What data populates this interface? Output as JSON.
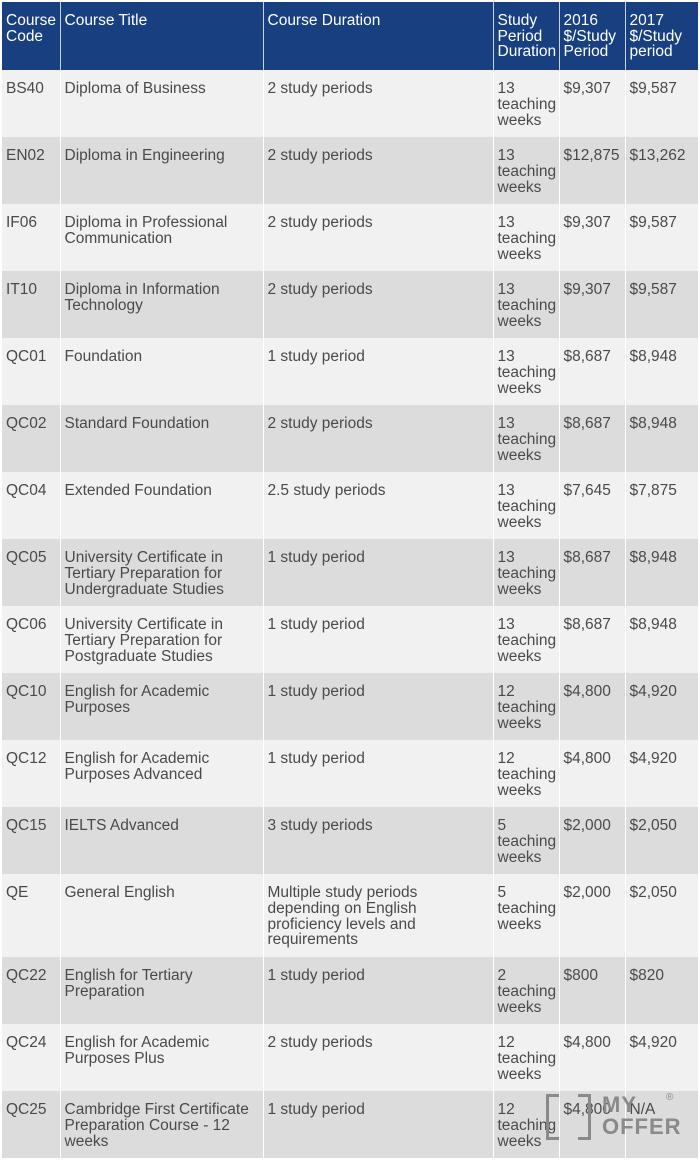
{
  "table": {
    "headers": {
      "code": "Course Code",
      "title": "Course Title",
      "duration": "Course Duration",
      "period": "Study Period Duration",
      "fee2016": "2016 $/Study Period",
      "fee2017": "2017 $/Study period"
    },
    "rows": [
      {
        "code": "BS40",
        "title": "Diploma of Business",
        "duration": "2 study periods",
        "period": "13 teaching weeks",
        "fee2016": "$9,307",
        "fee2017": "$9,587"
      },
      {
        "code": "EN02",
        "title": "Diploma in Engineering",
        "duration": "2 study periods",
        "period": "13 teaching weeks",
        "fee2016": "$12,875",
        "fee2017": "$13,262"
      },
      {
        "code": "IF06",
        "title": "Diploma in Professional Communication",
        "duration": "2 study periods",
        "period": "13 teaching weeks",
        "fee2016": "$9,307",
        "fee2017": "$9,587"
      },
      {
        "code": "IT10",
        "title": "Diploma in Information Technology",
        "duration": "2 study periods",
        "period": "13 teaching weeks",
        "fee2016": "$9,307",
        "fee2017": "$9,587"
      },
      {
        "code": "QC01",
        "title": "Foundation",
        "duration": "1 study period",
        "period": "13 teaching weeks",
        "fee2016": "$8,687",
        "fee2017": "$8,948"
      },
      {
        "code": "QC02",
        "title": "Standard Foundation",
        "duration": "2 study periods",
        "period": "13 teaching weeks",
        "fee2016": "$8,687",
        "fee2017": "$8,948"
      },
      {
        "code": "QC04",
        "title": "Extended Foundation",
        "duration": "2.5 study periods",
        "period": "13 teaching weeks",
        "fee2016": "$7,645",
        "fee2017": "$7,875"
      },
      {
        "code": "QC05",
        "title": "University Certificate in Tertiary Preparation for Undergraduate Studies",
        "duration": "1 study period",
        "period": "13 teaching weeks",
        "fee2016": "$8,687",
        "fee2017": "$8,948"
      },
      {
        "code": "QC06",
        "title": "University Certificate in Tertiary Preparation for Postgraduate Studies",
        "duration": "1 study period",
        "period": "13 teaching weeks",
        "fee2016": "$8,687",
        "fee2017": "$8,948"
      },
      {
        "code": "QC10",
        "title": "English for Academic Purposes",
        "duration": "1 study period",
        "period": "12 teaching weeks",
        "fee2016": "$4,800",
        "fee2017": "$4,920"
      },
      {
        "code": "QC12",
        "title": "English for Academic Purposes Advanced",
        "duration": "1 study period",
        "period": "12 teaching weeks",
        "fee2016": "$4,800",
        "fee2017": "$4,920"
      },
      {
        "code": "QC15",
        "title": "IELTS Advanced",
        "duration": "3 study periods",
        "period": "5 teaching weeks",
        "fee2016": "$2,000",
        "fee2017": "$2,050"
      },
      {
        "code": "QE",
        "title": "General English",
        "duration": "Multiple study periods depending on English proficiency levels and requirements",
        "period": "5 teaching weeks",
        "fee2016": "$2,000",
        "fee2017": "$2,050"
      },
      {
        "code": "QC22",
        "title": "English for Tertiary Preparation",
        "duration": "1 study period",
        "period": "2 teaching weeks",
        "fee2016": "$800",
        "fee2017": "$820"
      },
      {
        "code": "QC24",
        "title": "English for Academic Purposes Plus",
        "duration": "2 study periods",
        "period": "12 teaching weeks",
        "fee2016": "$4,800",
        "fee2017": "$4,920"
      },
      {
        "code": "QC25",
        "title": "Cambridge First Certificate Preparation Course - 12 weeks",
        "duration": "1 study period",
        "period": "12 teaching weeks",
        "fee2016": "$4,800",
        "fee2017": "N/A"
      }
    ]
  },
  "watermark": {
    "line1": "MY",
    "line2": "OFFER",
    "mark": "®"
  },
  "colors": {
    "header_bg": "#184080",
    "row_light": "#f1f1f1",
    "row_dark": "#dcdcdc",
    "text": "#4a4a4a"
  }
}
